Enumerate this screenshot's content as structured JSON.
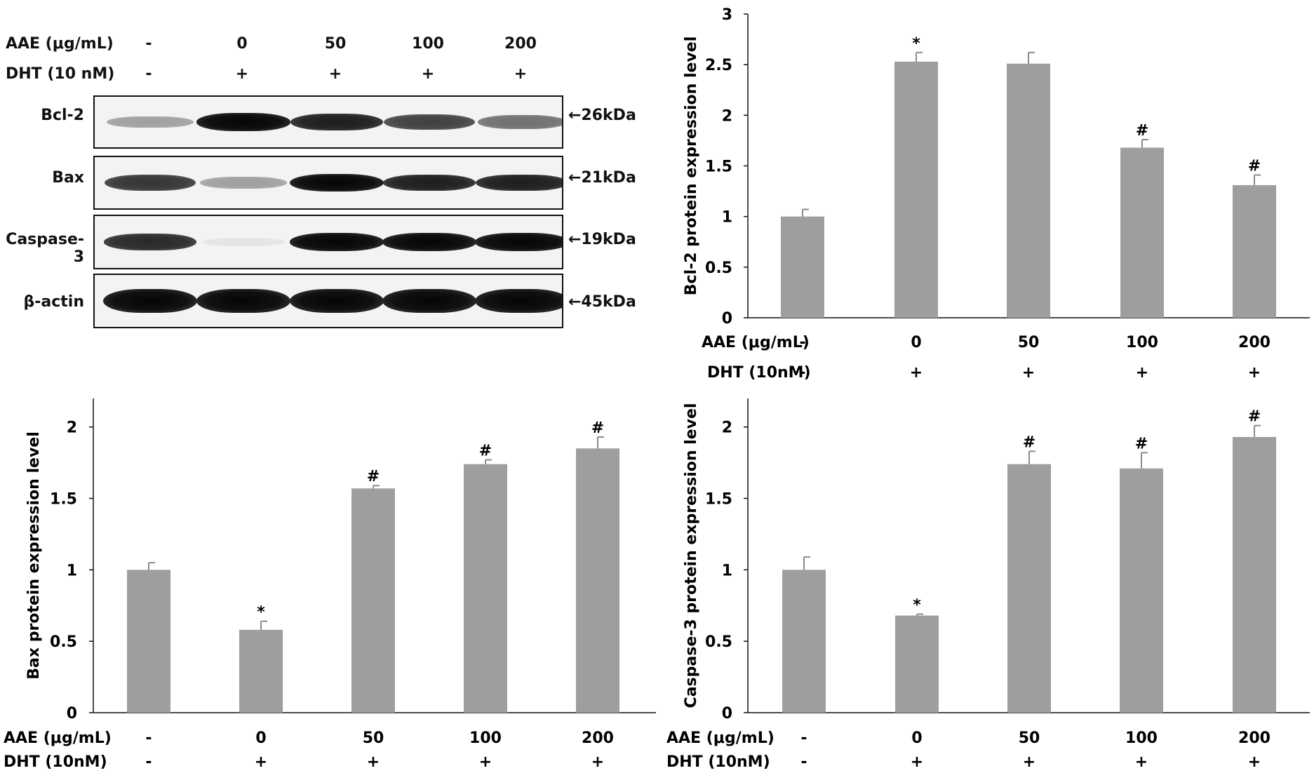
{
  "blot": {
    "treatment_rows": [
      {
        "label": "AAE (μg/mL)",
        "values": [
          "-",
          "0",
          "50",
          "100",
          "200"
        ]
      },
      {
        "label": "DHT (10 nM)",
        "values": [
          "-",
          "+",
          "+",
          "+",
          "+"
        ]
      }
    ],
    "proteins": [
      {
        "name": "Bcl-2",
        "size": "←26kDa",
        "intensity": [
          0.35,
          1.0,
          0.9,
          0.75,
          0.55
        ]
      },
      {
        "name": "Bax",
        "size": "←21kDa",
        "intensity": [
          0.8,
          0.35,
          1.0,
          0.9,
          0.9
        ]
      },
      {
        "name": "Caspase-3",
        "size": "←19kDa",
        "intensity": [
          0.85,
          0.05,
          1.0,
          1.0,
          1.0
        ]
      },
      {
        "name": "β-actin",
        "size": "←45kDa",
        "intensity": [
          1.0,
          1.0,
          1.0,
          1.0,
          1.0
        ]
      }
    ]
  },
  "chart_data": [
    {
      "type": "bar",
      "panel": "top-right",
      "categories": [
        "-",
        "0",
        "50",
        "100",
        "200"
      ],
      "values": [
        1.0,
        2.53,
        2.51,
        1.68,
        1.31
      ],
      "errors": [
        0.07,
        0.09,
        0.11,
        0.08,
        0.1
      ],
      "annotations": [
        "",
        "*",
        "",
        "#",
        "#"
      ],
      "ylabel": "Bcl-2 protein expression level",
      "ylim": [
        0,
        3
      ],
      "yticks": [
        "0",
        "0.5",
        "1",
        "1.5",
        "2",
        "2.5",
        "3"
      ],
      "ytick_values": [
        0,
        0.5,
        1,
        1.5,
        2,
        2.5,
        3
      ],
      "xrow1_label": "AAE (μg/mL)",
      "xrow2_label": "DHT (10nM)",
      "xrow2_values": [
        "-",
        "+",
        "+",
        "+",
        "+"
      ],
      "bar_color": "#9e9e9e"
    },
    {
      "type": "bar",
      "panel": "bottom-left",
      "categories": [
        "-",
        "0",
        "50",
        "100",
        "200"
      ],
      "values": [
        1.0,
        0.58,
        1.57,
        1.74,
        1.85
      ],
      "errors": [
        0.05,
        0.06,
        0.02,
        0.03,
        0.08
      ],
      "annotations": [
        "",
        "*",
        "#",
        "#",
        "#"
      ],
      "ylabel": "Bax protein expression level",
      "ylim": [
        0,
        2.2
      ],
      "yticks": [
        "0",
        "0.5",
        "1",
        "1.5",
        "2"
      ],
      "ytick_values": [
        0,
        0.5,
        1,
        1.5,
        2
      ],
      "xrow1_label": "AAE (μg/mL)",
      "xrow2_label": "DHT (10nM)",
      "xrow2_values": [
        "-",
        "+",
        "+",
        "+",
        "+"
      ],
      "bar_color": "#9e9e9e"
    },
    {
      "type": "bar",
      "panel": "bottom-right",
      "categories": [
        "-",
        "0",
        "50",
        "100",
        "200"
      ],
      "values": [
        1.0,
        0.68,
        1.74,
        1.71,
        1.93
      ],
      "errors": [
        0.09,
        0.01,
        0.09,
        0.11,
        0.08
      ],
      "annotations": [
        "",
        "*",
        "#",
        "#",
        "#"
      ],
      "ylabel": "Caspase-3 protein expression level",
      "ylim": [
        0,
        2.2
      ],
      "yticks": [
        "0",
        "0.5",
        "1",
        "1.5",
        "2"
      ],
      "ytick_values": [
        0,
        0.5,
        1,
        1.5,
        2
      ],
      "xrow1_label": "AAE (μg/mL)",
      "xrow2_label": "DHT (10nM)",
      "xrow2_values": [
        "-",
        "+",
        "+",
        "+",
        "+"
      ],
      "bar_color": "#9e9e9e"
    }
  ]
}
